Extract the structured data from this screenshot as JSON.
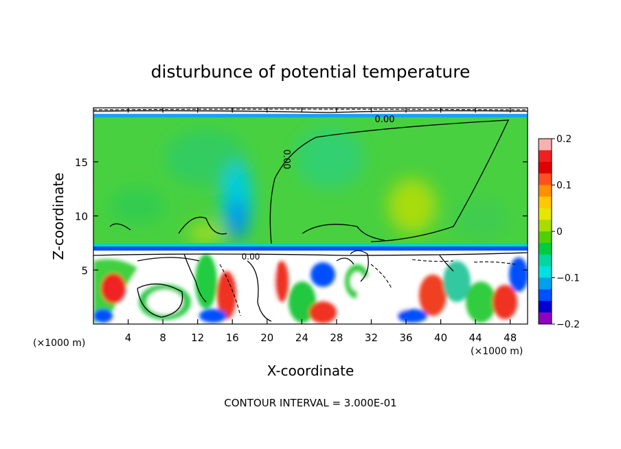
{
  "chart_data": {
    "type": "heatmap",
    "title": "disturbunce of potential temperature",
    "xlabel": "X-coordinate",
    "ylabel": "Z-coordinate",
    "x_unit": "(×1000 m)",
    "x_unit_right": "(×1000 m)",
    "xlim": [
      0,
      50
    ],
    "ylim": [
      0,
      20
    ],
    "x_ticks": [
      4,
      8,
      12,
      16,
      20,
      24,
      28,
      32,
      36,
      40,
      44,
      48
    ],
    "y_ticks": [
      5,
      10,
      15
    ],
    "colorbar": {
      "range": [
        -0.2,
        0.2
      ],
      "ticks": [
        0.2,
        0.1,
        0,
        -0.1,
        -0.2
      ],
      "tick_labels": [
        "0.2",
        "0.1",
        "0",
        "-0.1",
        "-0.2"
      ],
      "colors": [
        "#f8b0b0",
        "#f02020",
        "#e00000",
        "#ff5020",
        "#ff9000",
        "#ffc800",
        "#e6e600",
        "#a8dc00",
        "#50d000",
        "#00cc40",
        "#00d8a0",
        "#00e0e0",
        "#00a0f0",
        "#0050ff",
        "#0000d0",
        "#9000c0"
      ]
    },
    "contour_labels": [
      "0.00",
      "0.00",
      "0.00"
    ],
    "contour_interval_label": "CONTOUR INTERVAL = 3.000E-01"
  }
}
